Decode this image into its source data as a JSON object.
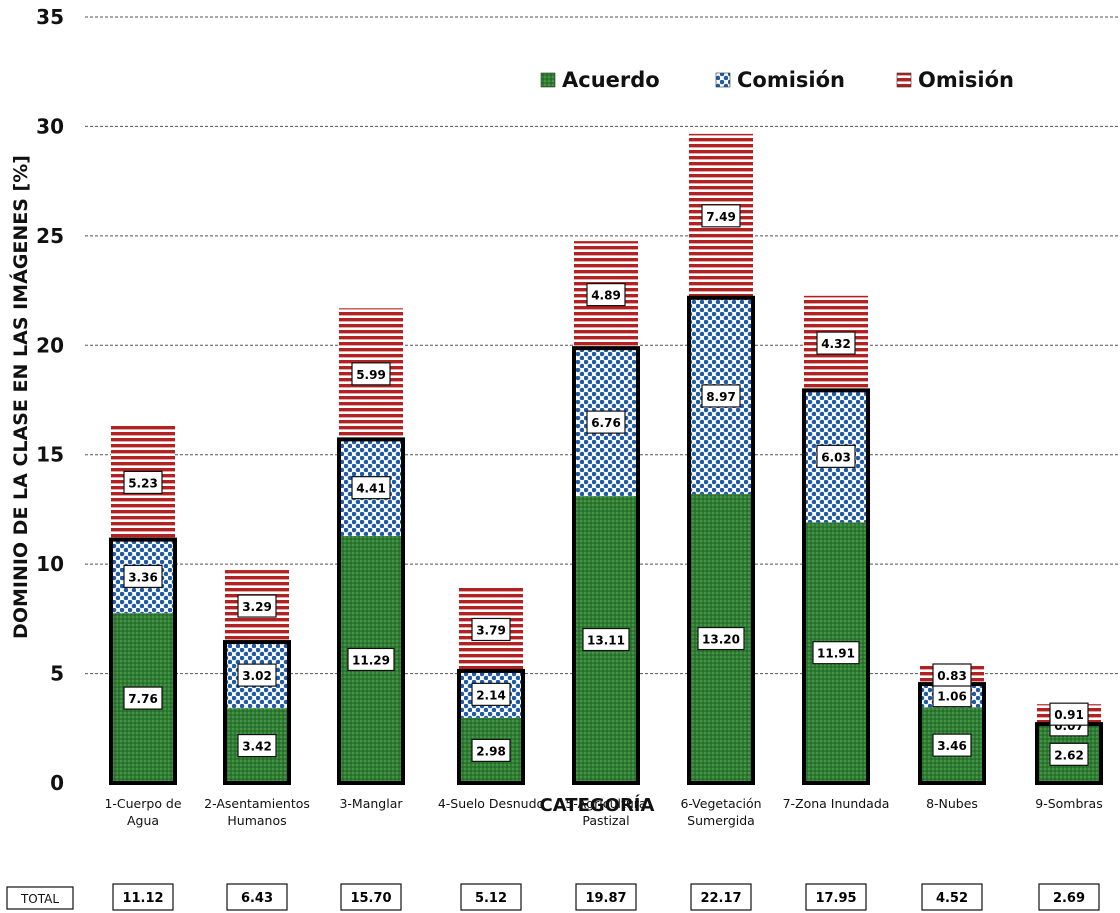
{
  "chart_data": {
    "type": "bar",
    "stacked": true,
    "title": "",
    "xlabel": "CATEGORÍA",
    "ylabel": "DOMINIO DE LA CLASE EN LAS IMÁGENES [%]",
    "ylim": [
      0,
      35
    ],
    "yticks": [
      0,
      5,
      10,
      15,
      20,
      25,
      30,
      35
    ],
    "grid": true,
    "legend_position": "top-right",
    "categories": [
      [
        "1-Cuerpo de",
        "Agua"
      ],
      [
        "2-Asentamientos",
        "Humanos"
      ],
      [
        "3-Manglar"
      ],
      [
        "4-Suelo Desnudo"
      ],
      [
        "5-Agricultura",
        "Pastizal"
      ],
      [
        "6-Vegetación",
        "Sumergida"
      ],
      [
        "7-Zona Inundada"
      ],
      [
        "8-Nubes"
      ],
      [
        "9-Sombras"
      ]
    ],
    "series": [
      {
        "name": "Acuerdo",
        "color": "#2e7d32",
        "pattern": "dots",
        "values": [
          7.76,
          3.42,
          11.29,
          2.98,
          13.11,
          13.2,
          11.91,
          3.46,
          2.62
        ]
      },
      {
        "name": "Comisión",
        "color": "#1f5aa6",
        "pattern": "checker",
        "values": [
          3.36,
          3.02,
          4.41,
          2.14,
          6.76,
          8.97,
          6.03,
          1.06,
          0.07
        ]
      },
      {
        "name": "Omisión",
        "color": "#b22222",
        "pattern": "stripes",
        "values": [
          5.23,
          3.29,
          5.99,
          3.79,
          4.89,
          7.49,
          4.32,
          0.83,
          0.91
        ]
      }
    ],
    "data_labels": [
      [
        "7.76",
        "3.42",
        "11.29",
        "2.98",
        "13.11",
        "13.20",
        "11.91",
        "3.46",
        "2.62"
      ],
      [
        "3.36",
        "3.02",
        "4.41",
        "2.14",
        "6.76",
        "8.97",
        "6.03",
        "1.06",
        "0.07"
      ],
      [
        "5.23",
        "3.29",
        "5.99",
        "3.79",
        "4.89",
        "7.49",
        "4.32",
        "0.83",
        "0.91"
      ]
    ],
    "totals": {
      "label": "TOTAL",
      "values": [
        "11.12",
        "6.43",
        "15.70",
        "5.12",
        "19.87",
        "22.17",
        "17.95",
        "4.52",
        "2.69"
      ]
    }
  }
}
